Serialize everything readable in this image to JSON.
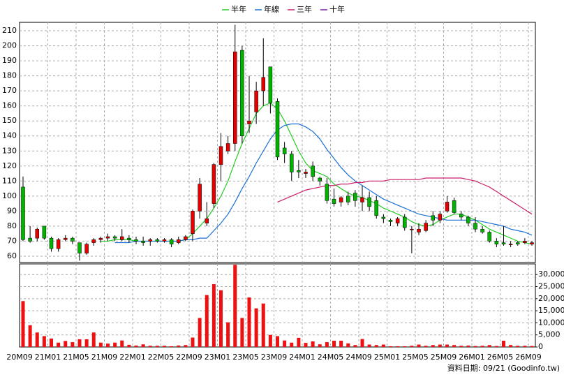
{
  "chart_data": {
    "type": "candlestick",
    "categories": [
      "20M09",
      null,
      null,
      null,
      "21M01",
      null,
      null,
      null,
      "21M05",
      null,
      null,
      null,
      "21M09",
      null,
      null,
      null,
      "22M01",
      null,
      null,
      null,
      "22M05",
      null,
      null,
      null,
      "22M09",
      null,
      null,
      null,
      "23M01",
      null,
      null,
      null,
      "23M05",
      null,
      null,
      null,
      "23M09",
      null,
      null,
      null,
      "24M01",
      null,
      null,
      null,
      "24M05",
      null,
      null,
      null,
      "24M09",
      null,
      null,
      null,
      "25M01",
      null,
      null,
      null,
      "25M05",
      null,
      null,
      null,
      "25M09",
      null,
      null,
      null,
      "26M01",
      null,
      null,
      null,
      "26M05",
      null,
      null,
      null,
      "26M09"
    ],
    "open": [
      106,
      72,
      72,
      80,
      72,
      65,
      71,
      72,
      69,
      62,
      69,
      71,
      72,
      73,
      71,
      72,
      71,
      70,
      70,
      71,
      70,
      71,
      69,
      71,
      75,
      90,
      82,
      95,
      121,
      130,
      135,
      197,
      148,
      156,
      170,
      186,
      163,
      132,
      128,
      117,
      115,
      120,
      112,
      108,
      98,
      96,
      100,
      102,
      96,
      99,
      97,
      86,
      84,
      82,
      86,
      78,
      76,
      77,
      87,
      84,
      90,
      97,
      88,
      86,
      82,
      78,
      76,
      70,
      69,
      68,
      69,
      69,
      68
    ],
    "high": [
      113,
      80,
      79,
      80,
      73,
      72,
      74,
      73,
      69,
      69,
      72,
      73,
      75,
      74,
      78,
      74,
      73,
      73,
      72,
      72,
      72,
      72,
      73,
      74,
      91,
      112,
      96,
      122,
      142,
      140,
      214,
      200,
      180,
      176,
      205,
      186,
      165,
      136,
      130,
      124,
      118,
      123,
      113,
      112,
      105,
      100,
      103,
      104,
      107,
      103,
      100,
      88,
      85,
      86,
      88,
      80,
      82,
      84,
      90,
      90,
      100,
      99,
      90,
      87,
      86,
      80,
      77,
      72,
      80,
      70,
      70,
      72,
      70
    ],
    "low": [
      70,
      69,
      70,
      71,
      63,
      63,
      70,
      68,
      57,
      61,
      67,
      69,
      70,
      70,
      70,
      69,
      68,
      67,
      67,
      69,
      69,
      66,
      68,
      70,
      70,
      85,
      80,
      92,
      110,
      128,
      130,
      135,
      142,
      148,
      160,
      155,
      124,
      122,
      110,
      112,
      112,
      110,
      107,
      95,
      93,
      93,
      94,
      93,
      90,
      90,
      85,
      82,
      80,
      80,
      77,
      62,
      74,
      76,
      80,
      82,
      89,
      88,
      84,
      80,
      76,
      75,
      69,
      66,
      67,
      66,
      67,
      68,
      67
    ],
    "close": [
      71,
      70,
      78,
      72,
      65,
      71,
      72,
      70,
      62,
      68,
      71,
      72,
      73,
      72,
      73,
      71,
      70,
      69,
      71,
      70,
      71,
      68,
      71,
      73,
      90,
      108,
      85,
      121,
      133,
      135,
      196,
      140,
      150,
      170,
      179,
      162,
      126,
      128,
      116,
      116,
      116,
      113,
      110,
      97,
      95,
      99,
      96,
      97,
      99,
      93,
      87,
      85,
      83,
      85,
      79,
      78,
      78,
      82,
      84,
      88,
      96,
      89,
      86,
      82,
      78,
      76,
      70,
      68,
      68,
      68,
      68,
      70,
      69
    ],
    "up_color": "#e60000",
    "down_color": "#00b400",
    "ylim": [
      55.8,
      215.6
    ],
    "yticks": [
      60,
      70,
      80,
      90,
      100,
      110,
      120,
      130,
      140,
      150,
      160,
      170,
      180,
      190,
      200,
      210
    ],
    "grid": true,
    "series": [
      {
        "name": "半年",
        "color": "#22cc22",
        "values": [
          null,
          null,
          null,
          null,
          null,
          null,
          null,
          null,
          null,
          null,
          null,
          70,
          70,
          71,
          71,
          71,
          70,
          70,
          70,
          70,
          70,
          70,
          70,
          71,
          75,
          80,
          85,
          92,
          100,
          110,
          123,
          135,
          145,
          155,
          160,
          162,
          158,
          150,
          140,
          130,
          122,
          117,
          115,
          113,
          108,
          105,
          102,
          100,
          99,
          97,
          95,
          92,
          90,
          88,
          86,
          83,
          81,
          80,
          81,
          84,
          86,
          88,
          88,
          86,
          84,
          81,
          78,
          76,
          74,
          72,
          70,
          69,
          68
        ]
      },
      {
        "name": "年線",
        "color": "#1a6fd6",
        "values": [
          null,
          null,
          null,
          null,
          null,
          null,
          null,
          null,
          null,
          null,
          null,
          null,
          null,
          69,
          69,
          69,
          70,
          70,
          70,
          70,
          70,
          70,
          70,
          71,
          71,
          72,
          72,
          77,
          82,
          88,
          96,
          105,
          113,
          122,
          130,
          138,
          144,
          147,
          148,
          148,
          146,
          143,
          138,
          131,
          125,
          119,
          114,
          110,
          107,
          104,
          101,
          98,
          96,
          94,
          92,
          90,
          88,
          87,
          86,
          85,
          84,
          84,
          84,
          84,
          84,
          83,
          82,
          81,
          80,
          78,
          77,
          76,
          74
        ]
      },
      {
        "name": "三年",
        "color": "#cc1f6a",
        "values": [
          null,
          null,
          null,
          null,
          null,
          null,
          null,
          null,
          null,
          null,
          null,
          null,
          null,
          null,
          null,
          null,
          null,
          null,
          null,
          null,
          null,
          null,
          null,
          null,
          null,
          null,
          null,
          null,
          null,
          null,
          null,
          null,
          null,
          null,
          null,
          null,
          96,
          98,
          100,
          102,
          104,
          105,
          106,
          107,
          107,
          108,
          108,
          109,
          109,
          110,
          110,
          110,
          111,
          111,
          111,
          111,
          111,
          112,
          112,
          112,
          112,
          112,
          112,
          111,
          110,
          108,
          106,
          103,
          100,
          97,
          94,
          91,
          88
        ]
      },
      {
        "name": "十年",
        "color": "#7a1fa0",
        "values": [
          null,
          null,
          null,
          null,
          null,
          null,
          null,
          null,
          null,
          null,
          null,
          null,
          null,
          null,
          null,
          null,
          null,
          null,
          null,
          null,
          null,
          null,
          null,
          null,
          null,
          null,
          null,
          null,
          null,
          null,
          null,
          null,
          null,
          null,
          null,
          null,
          null,
          null,
          null,
          null,
          null,
          null,
          null,
          null,
          null,
          null,
          null,
          null,
          null,
          null,
          null,
          null,
          null,
          null,
          null,
          null,
          null,
          null,
          null,
          null,
          null,
          null,
          null,
          null,
          null,
          null,
          null,
          null,
          null,
          null,
          null,
          null,
          null
        ]
      }
    ],
    "volume": {
      "color": "#ee1111",
      "values": [
        19000,
        9000,
        6000,
        4500,
        3500,
        1800,
        2500,
        2000,
        3200,
        3200,
        6000,
        1800,
        1400,
        1800,
        2700,
        900,
        600,
        1100,
        500,
        500,
        500,
        300,
        600,
        800,
        3900,
        12000,
        21500,
        26000,
        23500,
        10200,
        34000,
        12000,
        20500,
        16000,
        18000,
        5000,
        4500,
        2700,
        1800,
        3800,
        1700,
        2300,
        1100,
        2000,
        2600,
        2600,
        1500,
        800,
        3300,
        1000,
        800,
        1000,
        300,
        300,
        300,
        500,
        1000,
        500,
        800,
        1000,
        1000,
        800,
        500,
        600,
        400,
        500,
        800,
        400,
        2600,
        800,
        500,
        500,
        400
      ],
      "ylim": [
        0,
        34400
      ],
      "yticks": [
        0,
        {
          "value": 5000,
          "label": "5,000"
        },
        {
          "value": 10000,
          "label": "10,000"
        },
        {
          "value": 15000,
          "label": "15,000"
        },
        {
          "value": 20000,
          "label": "20,000"
        },
        {
          "value": 25000,
          "label": "25,000"
        },
        {
          "value": 30000,
          "label": "30,000"
        }
      ]
    },
    "note": "資料日期: 09/21  (Goodinfo.tw)"
  }
}
